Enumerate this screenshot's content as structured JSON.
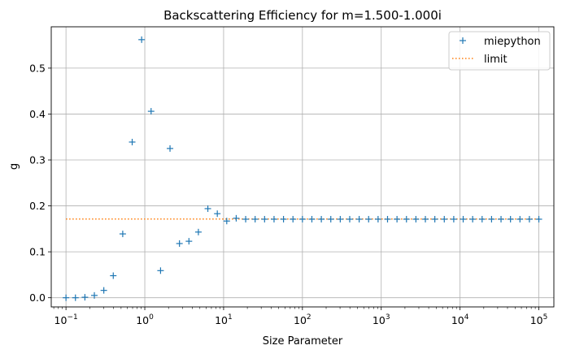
{
  "chart_data": {
    "type": "scatter",
    "title": "Backscattering Efficiency for m=1.500-1.000i",
    "xlabel": "Size Parameter",
    "ylabel": "g",
    "xscale": "log",
    "xlim": [
      0.065,
      155000
    ],
    "ylim": [
      -0.02,
      0.59
    ],
    "xticks": [
      {
        "value": 0.1,
        "base": "10",
        "exp": "−1"
      },
      {
        "value": 1,
        "base": "10",
        "exp": "0"
      },
      {
        "value": 10,
        "base": "10",
        "exp": "1"
      },
      {
        "value": 100,
        "base": "10",
        "exp": "2"
      },
      {
        "value": 1000,
        "base": "10",
        "exp": "3"
      },
      {
        "value": 10000,
        "base": "10",
        "exp": "4"
      },
      {
        "value": 100000,
        "base": "10",
        "exp": "5"
      }
    ],
    "yticks": [
      {
        "value": 0.0,
        "label": "0.0"
      },
      {
        "value": 0.1,
        "label": "0.1"
      },
      {
        "value": 0.2,
        "label": "0.2"
      },
      {
        "value": 0.3,
        "label": "0.3"
      },
      {
        "value": 0.4,
        "label": "0.4"
      },
      {
        "value": 0.5,
        "label": "0.5"
      }
    ],
    "grid": true,
    "legend_position": "top-right",
    "series": [
      {
        "name": "miepython",
        "style": "markers",
        "marker": "+",
        "color": "#1f77b4",
        "x": [
          0.1,
          0.1318,
          0.1738,
          0.2291,
          0.302,
          0.3981,
          0.5248,
          0.6918,
          0.912,
          1.202,
          1.585,
          2.089,
          2.754,
          3.631,
          4.786,
          6.31,
          8.318,
          10.96,
          14.45,
          19.05,
          25.12,
          33.11,
          43.65,
          57.54,
          75.86,
          100,
          131.8,
          173.8,
          229.1,
          302,
          398.1,
          524.8,
          691.8,
          912,
          1202,
          1585,
          2089,
          2754,
          3631,
          4786,
          6310,
          8318,
          10960,
          14450,
          19050,
          25120,
          33110,
          43650,
          57540,
          75860,
          100000
        ],
        "y": [
          0.0,
          0.0,
          0.001,
          0.005,
          0.016,
          0.048,
          0.139,
          0.339,
          0.562,
          0.406,
          0.059,
          0.325,
          0.118,
          0.123,
          0.143,
          0.194,
          0.183,
          0.167,
          0.173,
          0.171,
          0.171,
          0.171,
          0.171,
          0.171,
          0.171,
          0.171,
          0.171,
          0.171,
          0.171,
          0.171,
          0.171,
          0.171,
          0.171,
          0.171,
          0.171,
          0.171,
          0.171,
          0.171,
          0.171,
          0.171,
          0.171,
          0.171,
          0.171,
          0.171,
          0.171,
          0.171,
          0.171,
          0.171,
          0.171,
          0.171,
          0.171
        ]
      },
      {
        "name": "limit",
        "style": "dotted-line",
        "color": "#ff7f0e",
        "x": [
          0.1,
          100000
        ],
        "y": [
          0.1715,
          0.1715
        ]
      }
    ]
  }
}
